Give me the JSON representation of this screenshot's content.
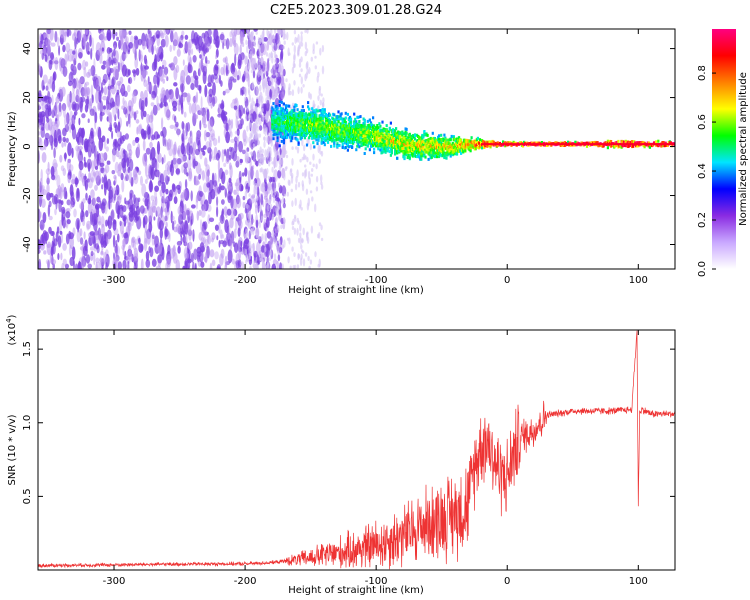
{
  "title": "C2E5.2023.309.01.28.G24",
  "chart_data": [
    {
      "type": "heatmap",
      "xlabel": "Height of straight line (km)",
      "ylabel": "Frequency (Hz)",
      "xlim": [
        -358,
        128
      ],
      "ylim": [
        -50,
        48
      ],
      "xticks": [
        -300,
        -200,
        -100,
        0,
        100
      ],
      "yticks": [
        -40,
        -20,
        0,
        20,
        40
      ],
      "colorbar": {
        "label": "Normalized spectral amplitude",
        "range": [
          0.0,
          0.98
        ],
        "ticks": [
          "0.0",
          "0.2",
          "0.4",
          "0.6",
          "0.8"
        ],
        "tick_values": [
          0.0,
          0.2,
          0.4,
          0.6,
          0.8
        ],
        "stops": [
          "#ffffff",
          "#c9a8ff",
          "#8a2be2",
          "#0000ff",
          "#00e5ff",
          "#00ff00",
          "#ffff00",
          "#ff8000",
          "#ff0000",
          "#ff0080"
        ]
      },
      "noise_region": {
        "x_range": [
          -358,
          -170
        ],
        "y_range": [
          -50,
          48
        ],
        "dominant_color": "#7a3fe0"
      },
      "ridge": [
        {
          "x": -180,
          "center": 10,
          "spread": 10,
          "peak": 0.3
        },
        {
          "x": -150,
          "center": 9,
          "spread": 10,
          "peak": 0.4
        },
        {
          "x": -120,
          "center": 6,
          "spread": 9,
          "peak": 0.4
        },
        {
          "x": -100,
          "center": 4,
          "spread": 8,
          "peak": 0.45
        },
        {
          "x": -80,
          "center": 1,
          "spread": 8,
          "peak": 0.5
        },
        {
          "x": -60,
          "center": 0,
          "spread": 7,
          "peak": 0.5
        },
        {
          "x": -40,
          "center": 0,
          "spread": 6,
          "peak": 0.5
        },
        {
          "x": -30,
          "center": 1,
          "spread": 4,
          "peak": 0.6
        },
        {
          "x": -20,
          "center": 1,
          "spread": 2,
          "peak": 0.8
        },
        {
          "x": 0,
          "center": 1,
          "spread": 1,
          "peak": 0.9
        },
        {
          "x": 50,
          "center": 1,
          "spread": 1,
          "peak": 0.95
        },
        {
          "x": 90,
          "center": 1,
          "spread": 2,
          "peak": 0.9
        },
        {
          "x": 128,
          "center": 1,
          "spread": 1,
          "peak": 0.95
        }
      ]
    },
    {
      "type": "line",
      "xlabel": "Height of straight line (km)",
      "ylabel": "SNR (10 * v/v)",
      "scale_label": "(x10",
      "scale_exp": "4",
      "scale_close": ")",
      "xlim": [
        -358,
        128
      ],
      "ylim": [
        0,
        16300
      ],
      "xticks": [
        -300,
        -200,
        -100,
        0,
        100
      ],
      "yticks": [
        5000,
        10000,
        15000
      ],
      "ytick_labels": [
        "0.5",
        "1.0",
        "1.5"
      ],
      "color": "#ee3333",
      "series": [
        {
          "x": [
            -358,
            -300,
            -250,
            -200,
            -180,
            -160,
            -140,
            -120,
            -100,
            -90,
            -80,
            -70,
            -60,
            -50,
            -40,
            -30,
            -25,
            -20,
            -15,
            -10,
            -5,
            0,
            5,
            10,
            20,
            30,
            50,
            80,
            95,
            99,
            100,
            101,
            103,
            110,
            128
          ],
          "y": [
            300,
            350,
            400,
            420,
            500,
            700,
            1000,
            1300,
            1700,
            2000,
            2300,
            2800,
            3200,
            3500,
            3800,
            4500,
            7000,
            8500,
            8800,
            7500,
            6500,
            6300,
            8000,
            9000,
            9500,
            10500,
            10800,
            10800,
            10900,
            16300,
            4300,
            10700,
            10900,
            10600,
            10600
          ]
        }
      ]
    }
  ]
}
